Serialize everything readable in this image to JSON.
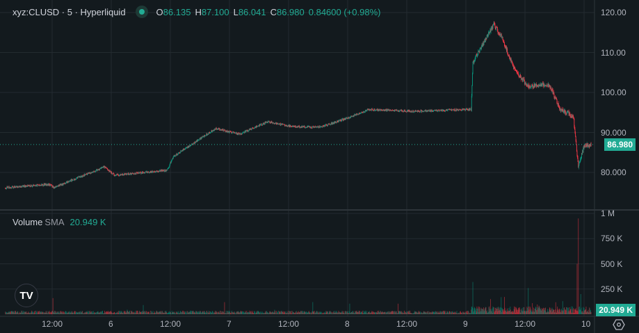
{
  "header": {
    "symbol": "xyz:CLUSD · 5 · Hyperliquid",
    "open_label": "O",
    "open": "86.135",
    "high_label": "H",
    "high": "87.100",
    "low_label": "L",
    "low": "86.041",
    "close_label": "C",
    "close": "86.980",
    "change": "0.84600 (+0.98%)",
    "status_color": "#22ab94"
  },
  "volume_legend": {
    "title": "Volume",
    "sma_label": "SMA",
    "sma_value": "20.949 K"
  },
  "last_price_tag": "86.980",
  "last_volume_tag": "20.949 K",
  "colors": {
    "background": "#131a1e",
    "up": "#089981",
    "down": "#f23645",
    "tag": "#22ab94"
  },
  "icons": {
    "logo": "tradingview-logo",
    "settings": "settings-hexagon-icon"
  },
  "chart_data": {
    "type": "candlestick",
    "interval": "5",
    "grid": true,
    "price_axis": {
      "ticks": [
        "120.00",
        "110.00",
        "100.00",
        "90.000",
        "80.000"
      ],
      "tick_values": [
        120,
        110,
        100,
        90,
        80
      ],
      "ylim": [
        71,
        121
      ]
    },
    "volume_axis": {
      "ticks": [
        "1 M",
        "750 K",
        "500 K",
        "250 K"
      ],
      "tick_values": [
        1000000,
        750000,
        500000,
        250000
      ]
    },
    "time_axis": {
      "ticks": [
        "12:00",
        "6",
        "12:00",
        "7",
        "12:00",
        "8",
        "12:00",
        "9",
        "12:00",
        "10"
      ],
      "tick_times": [
        "5 12:00",
        "6 00:00",
        "6 12:00",
        "7 00:00",
        "7 12:00",
        "8 00:00",
        "8 12:00",
        "9 00:00",
        "9 12:00",
        "10 00:00"
      ]
    },
    "price_path": [
      [
        "5 02:30",
        76.2
      ],
      [
        "5 11:20",
        77.0
      ],
      [
        "5 12:25",
        76.2
      ],
      [
        "5 22:35",
        81.4
      ],
      [
        "6 00:40",
        79.3
      ],
      [
        "6 11:20",
        80.5
      ],
      [
        "6 12:40",
        84.0
      ],
      [
        "6 16:55",
        87.5
      ],
      [
        "6 21:10",
        91.0
      ],
      [
        "7 02:05",
        89.6
      ],
      [
        "7 07:45",
        92.7
      ],
      [
        "7 12:40",
        91.5
      ],
      [
        "7 18:25",
        91.3
      ],
      [
        "8 00:00",
        93.6
      ],
      [
        "8 04:10",
        95.7
      ],
      [
        "8 14:05",
        95.3
      ],
      [
        "9 01:05",
        95.8
      ],
      [
        "9 01:25",
        107.5
      ],
      [
        "9 05:40",
        117.0
      ],
      [
        "9 07:05",
        114.4
      ],
      [
        "9 09:55",
        105.7
      ],
      [
        "9 12:40",
        101.4
      ],
      [
        "9 14:05",
        101.6
      ],
      [
        "9 16:55",
        102.0
      ],
      [
        "9 19:05",
        96.0
      ],
      [
        "9 21:50",
        94.0
      ],
      [
        "9 22:50",
        81.4
      ],
      [
        "10 00:00",
        86.6
      ],
      [
        "10 01:25",
        86.98
      ]
    ],
    "volume_base": 20949,
    "volume_spikes": [
      [
        "5 12:10",
        160000
      ],
      [
        "6 23:00",
        120000
      ],
      [
        "9 01:25",
        320000
      ],
      [
        "9 05:00",
        150000
      ],
      [
        "9 12:40",
        260000
      ],
      [
        "9 13:30",
        110000
      ],
      [
        "9 19:40",
        130000
      ],
      [
        "9 22:35",
        500000
      ],
      [
        "9 22:50",
        950000
      ],
      [
        "9 23:20",
        200000
      ]
    ]
  }
}
